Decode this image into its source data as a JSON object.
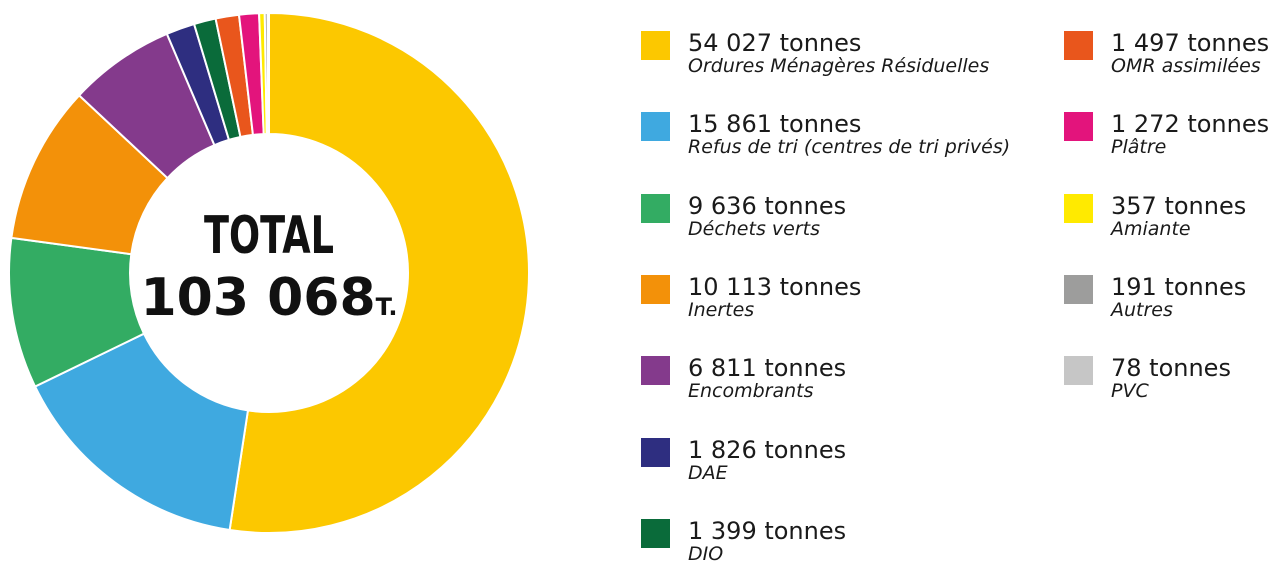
{
  "chart_data": {
    "type": "pie",
    "donut": true,
    "total": {
      "label": "TOTAL",
      "value": "103 068",
      "unit": "T."
    },
    "series": [
      {
        "value_text": "54 027 tonnes",
        "label": "Ordures Ménagères Résiduelles",
        "value": 54027,
        "color": "#FCC800"
      },
      {
        "value_text": "15 861 tonnes",
        "label": "Refus de tri (centres de tri privés)",
        "value": 15861,
        "color": "#3FA9E0"
      },
      {
        "value_text": "9 636 tonnes",
        "label": "Déchets verts",
        "value": 9636,
        "color": "#33AC63"
      },
      {
        "value_text": "10 113 tonnes",
        "label": "Inertes",
        "value": 10113,
        "color": "#F39109"
      },
      {
        "value_text": "6 811 tonnes",
        "label": "Encombrants",
        "value": 6811,
        "color": "#843A8C"
      },
      {
        "value_text": "1 826 tonnes",
        "label": "DAE",
        "value": 1826,
        "color": "#2E2E80"
      },
      {
        "value_text": "1 399 tonnes",
        "label": "DIO",
        "value": 1399,
        "color": "#0A6B3A"
      },
      {
        "value_text": "1 497 tonnes",
        "label": "OMR assimilées",
        "value": 1497,
        "color": "#E9561C"
      },
      {
        "value_text": "1 272 tonnes",
        "label": "Plâtre",
        "value": 1272,
        "color": "#E3147C"
      },
      {
        "value_text": "357 tonnes",
        "label": "Amiante",
        "value": 357,
        "color": "#FFEA00"
      },
      {
        "value_text": "191 tonnes",
        "label": "Autres",
        "value": 191,
        "color": "#9D9D9C"
      },
      {
        "value_text": "78 tonnes",
        "label": "PVC",
        "value": 78,
        "color": "#C6C6C6"
      }
    ]
  }
}
